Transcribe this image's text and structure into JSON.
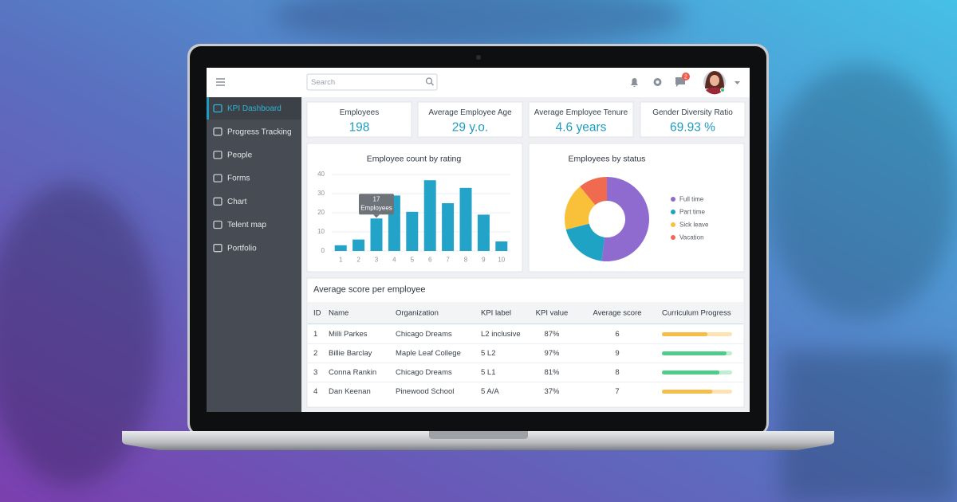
{
  "topbar": {
    "search_placeholder": "Search",
    "notification_count": "2"
  },
  "sidebar": {
    "items": [
      "KPI Dashboard",
      "Progress Tracking",
      "People",
      "Forms",
      "Chart",
      "Telent map",
      "Portfolio"
    ],
    "active": 0
  },
  "kpis": [
    {
      "label": "Employees",
      "value": "198"
    },
    {
      "label": "Average Employee Age",
      "value": "29 y.o."
    },
    {
      "label": "Average Employee Tenure",
      "value": "4.6 years"
    },
    {
      "label": "Gender Diversity Ratio",
      "value": "69.93 %"
    }
  ],
  "chart_data": [
    {
      "type": "bar",
      "title": "Employee count by rating",
      "categories": [
        "1",
        "2",
        "3",
        "4",
        "5",
        "6",
        "7",
        "8",
        "9",
        "10"
      ],
      "values": [
        3,
        6,
        17,
        29,
        20.5,
        37,
        25,
        33,
        19,
        5
      ],
      "color": "#23a3c8",
      "ylim": [
        0,
        40
      ],
      "yticks": [
        0,
        10,
        20,
        30,
        40
      ],
      "grid": true,
      "tooltip": {
        "index": 2,
        "unit": "Employees"
      }
    },
    {
      "type": "pie",
      "title": "Employees by status",
      "donut": true,
      "categories": [
        "Full time",
        "Part time",
        "Sick leave",
        "Vacation"
      ],
      "values": [
        52,
        19,
        18,
        11
      ],
      "colors": [
        "#8f6bd0",
        "#1fa3c4",
        "#f9c03a",
        "#f06a4f"
      ]
    }
  ],
  "table": {
    "title": "Average score per employee",
    "columns": [
      "ID",
      "Name",
      "Organization",
      "KPI label",
      "KPI value",
      "Average score",
      "Curriculum Progress"
    ],
    "rows": [
      [
        "1",
        "Milli Parkes",
        "Chicago Dreams",
        "L2 inclusive",
        "87%",
        "6"
      ],
      [
        "2",
        "Billie Barclay",
        "Maple Leaf College",
        "5 L2",
        "97%",
        "9"
      ],
      [
        "3",
        "Conna Rankin",
        "Chicago Dreams",
        "5 L1",
        "81%",
        "8"
      ],
      [
        "4",
        "Dan Keenan",
        "Pinewood School",
        "5 A/A",
        "37%",
        "7"
      ]
    ],
    "progress": [
      65,
      92,
      82,
      72
    ],
    "progress_colors": [
      "#f6bd4a",
      "#4fcb8a",
      "#4fcb8a",
      "#f6bd4a"
    ],
    "progress_tracks": [
      "#fbe3b3",
      "#bfeed3",
      "#bfeed3",
      "#fbe3b3"
    ]
  }
}
